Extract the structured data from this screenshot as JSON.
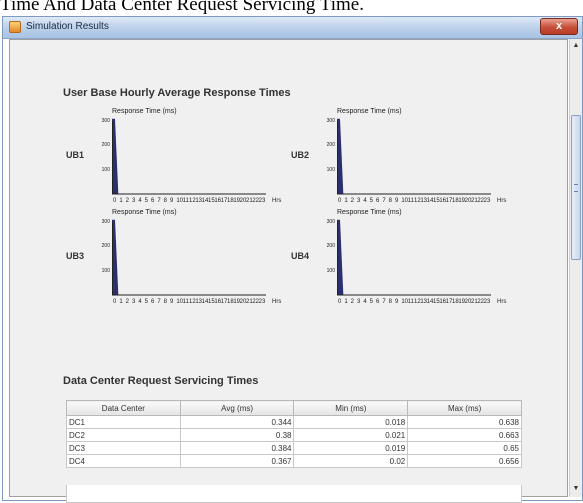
{
  "caption": "Time And Data Center Request Servicing Time.",
  "window": {
    "title": "Simulation Results",
    "close_label": "x"
  },
  "scroll": {
    "up": "▲",
    "down": "▼"
  },
  "hourly": {
    "heading": "User Base Hourly Average Response Times",
    "axis_title": "Response Time (ms)",
    "y_ticks": [
      "300",
      "200",
      "100"
    ],
    "x_unit": "Hrs",
    "x_ticks": [
      "0",
      "1",
      "2",
      "3",
      "4",
      "5",
      "6",
      "7",
      "8",
      "9",
      "10",
      "11",
      "12",
      "13",
      "14",
      "15",
      "16",
      "17",
      "18",
      "19",
      "20",
      "21",
      "22",
      "23"
    ],
    "user_bases": [
      {
        "label": "UB1"
      },
      {
        "label": "UB2"
      },
      {
        "label": "UB3"
      },
      {
        "label": "UB4"
      }
    ]
  },
  "chart_data": [
    {
      "type": "bar",
      "title": "UB1",
      "ylabel": "Response Time (ms)",
      "xlabel": "Hrs",
      "ylim": [
        0,
        300
      ],
      "categories": [
        "0",
        "1",
        "2",
        "3",
        "4",
        "5",
        "6",
        "7",
        "8",
        "9",
        "10",
        "11",
        "12",
        "13",
        "14",
        "15",
        "16",
        "17",
        "18",
        "19",
        "20",
        "21",
        "22",
        "23"
      ],
      "values": [
        310,
        0,
        0,
        0,
        0,
        0,
        0,
        0,
        0,
        0,
        0,
        0,
        0,
        0,
        0,
        0,
        0,
        0,
        0,
        0,
        0,
        0,
        0,
        0
      ]
    },
    {
      "type": "bar",
      "title": "UB2",
      "ylabel": "Response Time (ms)",
      "xlabel": "Hrs",
      "ylim": [
        0,
        300
      ],
      "categories": [
        "0",
        "1",
        "2",
        "3",
        "4",
        "5",
        "6",
        "7",
        "8",
        "9",
        "10",
        "11",
        "12",
        "13",
        "14",
        "15",
        "16",
        "17",
        "18",
        "19",
        "20",
        "21",
        "22",
        "23"
      ],
      "values": [
        310,
        0,
        0,
        0,
        0,
        0,
        0,
        0,
        0,
        0,
        0,
        0,
        0,
        0,
        0,
        0,
        0,
        0,
        0,
        0,
        0,
        0,
        0,
        0
      ]
    },
    {
      "type": "bar",
      "title": "UB3",
      "ylabel": "Response Time (ms)",
      "xlabel": "Hrs",
      "ylim": [
        0,
        300
      ],
      "categories": [
        "0",
        "1",
        "2",
        "3",
        "4",
        "5",
        "6",
        "7",
        "8",
        "9",
        "10",
        "11",
        "12",
        "13",
        "14",
        "15",
        "16",
        "17",
        "18",
        "19",
        "20",
        "21",
        "22",
        "23"
      ],
      "values": [
        310,
        0,
        0,
        0,
        0,
        0,
        0,
        0,
        0,
        0,
        0,
        0,
        0,
        0,
        0,
        0,
        0,
        0,
        0,
        0,
        0,
        0,
        0,
        0
      ]
    },
    {
      "type": "bar",
      "title": "UB4",
      "ylabel": "Response Time (ms)",
      "xlabel": "Hrs",
      "ylim": [
        0,
        300
      ],
      "categories": [
        "0",
        "1",
        "2",
        "3",
        "4",
        "5",
        "6",
        "7",
        "8",
        "9",
        "10",
        "11",
        "12",
        "13",
        "14",
        "15",
        "16",
        "17",
        "18",
        "19",
        "20",
        "21",
        "22",
        "23"
      ],
      "values": [
        310,
        0,
        0,
        0,
        0,
        0,
        0,
        0,
        0,
        0,
        0,
        0,
        0,
        0,
        0,
        0,
        0,
        0,
        0,
        0,
        0,
        0,
        0,
        0
      ]
    }
  ],
  "dc": {
    "heading": "Data Center Request Servicing Times",
    "columns": [
      "Data Center",
      "Avg (ms)",
      "Min (ms)",
      "Max (ms)"
    ],
    "rows": [
      [
        "DC1",
        "0.344",
        "0.018",
        "0.638"
      ],
      [
        "DC2",
        "0.38",
        "0.021",
        "0.663"
      ],
      [
        "DC3",
        "0.384",
        "0.019",
        "0.65"
      ],
      [
        "DC4",
        "0.367",
        "0.02",
        "0.656"
      ]
    ]
  },
  "colors": {
    "bar": "#2b2f6e",
    "axis": "#222222",
    "window_border": "#7e9bbf"
  }
}
